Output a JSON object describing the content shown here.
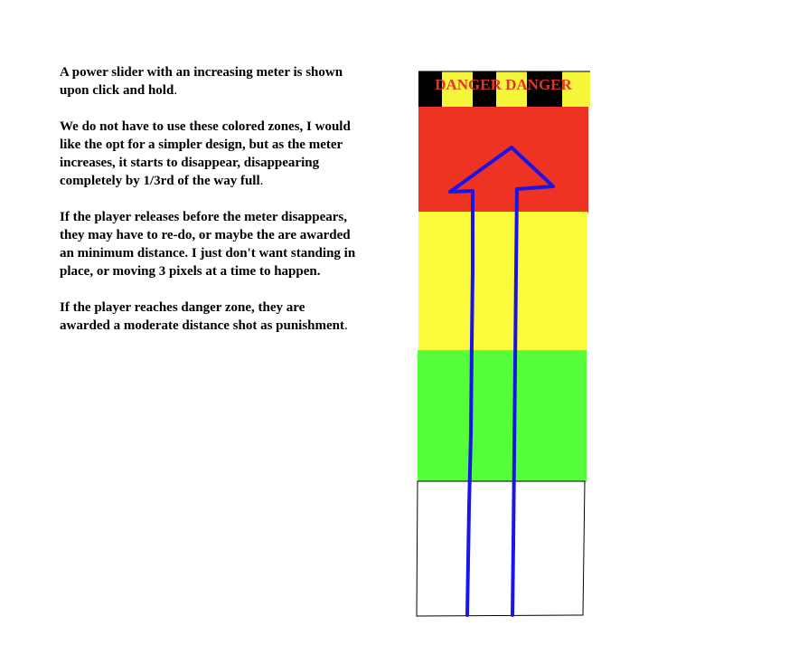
{
  "notes": [
    {
      "text": "A power slider with an increasing meter is shown upon click and hold",
      "tail": "."
    },
    {
      "text": "We do not have to use these colored zones, I would like the opt for a simpler design, but as the meter increases, it starts to disappear, disappearing completely by 1/3rd of the way full",
      "tail": "."
    },
    {
      "text": "If the player releases before the meter disappears, they may have to re-do, or maybe the are awarded an minimum distance",
      "tail": ". I just don't want standing in place, or moving 3 pixels at a time to happen."
    },
    {
      "text": "If the player reaches danger zone, they are awarded a moderate distance shot as punishment",
      "tail": "."
    }
  ],
  "meter": {
    "danger_label": "DANGER DANGER",
    "colors": {
      "danger_stripe_dark": "#000000",
      "danger_stripe_light": "#f5f53a",
      "danger_text": "#e8322a",
      "red_zone": "#ee3322",
      "yellow_zone": "#fbfb3c",
      "green_zone": "#55ff3a",
      "empty_zone": "#ffffff",
      "arrow": "#1a14e8"
    }
  }
}
